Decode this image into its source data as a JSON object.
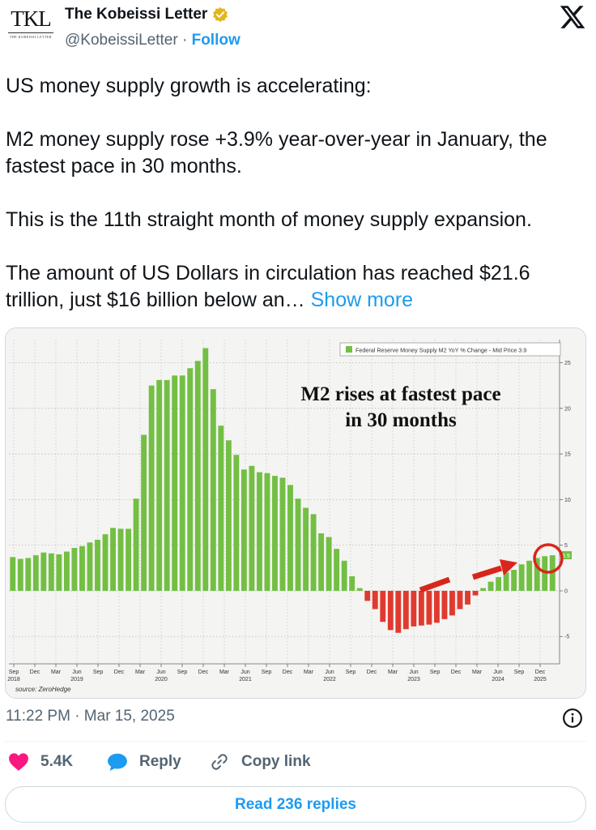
{
  "author": {
    "avatar_monogram": "TKL",
    "avatar_subtitle": "THE KOBEISSI LETTER",
    "name": "The Kobeissi Letter",
    "handle": "@KobeissiLetter",
    "separator": "·",
    "follow_label": "Follow",
    "verified_icon": "verified-badge-gold",
    "platform_icon": "x-logo-icon"
  },
  "tweet": {
    "paragraphs": [
      "US money supply growth is accelerating:",
      "M2 money supply rose +3.9% year-over-year in January, the fastest pace in 30 months.",
      "This is the 11th straight month of money supply expansion.",
      "The amount of US Dollars in circulation has reached $21.6 trillion, just $16 billion below an…"
    ],
    "show_more_label": "Show more"
  },
  "chart_data": {
    "type": "bar",
    "title": "M2 rises at fastest pace in 30 months",
    "legend": "Federal Reserve Money Supply M2 YoY % Change - Mid Price 3.9",
    "legend_position": "top-right",
    "source": "source: ZeroHedge",
    "last_value_label": "3.9",
    "ylim": [
      -8,
      27
    ],
    "y_ticks": [
      25,
      20,
      15,
      10,
      5,
      0,
      -5
    ],
    "grid": true,
    "x_tick_labels": [
      [
        "Sep",
        "2018"
      ],
      [
        "Dec",
        ""
      ],
      [
        "Mar",
        ""
      ],
      [
        "Jun",
        "2019"
      ],
      [
        "Sep",
        ""
      ],
      [
        "Dec",
        ""
      ],
      [
        "Mar",
        ""
      ],
      [
        "Jun",
        "2020"
      ],
      [
        "Sep",
        ""
      ],
      [
        "Dec",
        ""
      ],
      [
        "Mar",
        ""
      ],
      [
        "Jun",
        "2021"
      ],
      [
        "Sep",
        ""
      ],
      [
        "Dec",
        ""
      ],
      [
        "Mar",
        ""
      ],
      [
        "Jun",
        "2022"
      ],
      [
        "Sep",
        ""
      ],
      [
        "Dec",
        ""
      ],
      [
        "Mar",
        ""
      ],
      [
        "Jun",
        "2023"
      ],
      [
        "Sep",
        ""
      ],
      [
        "Dec",
        ""
      ],
      [
        "Mar",
        ""
      ],
      [
        "Jun",
        "2024"
      ],
      [
        "Sep",
        ""
      ],
      [
        "Dec",
        "2025"
      ]
    ],
    "values": [
      3.7,
      3.5,
      3.6,
      3.9,
      4.2,
      4.1,
      4.0,
      4.3,
      4.7,
      4.9,
      5.3,
      5.6,
      6.2,
      6.9,
      6.8,
      6.8,
      10.1,
      17.1,
      22.5,
      23.1,
      23.1,
      23.6,
      23.6,
      24.4,
      25.2,
      26.6,
      22.1,
      18.1,
      16.5,
      14.9,
      13.3,
      13.7,
      13.0,
      12.9,
      12.6,
      12.4,
      11.6,
      10.1,
      9.1,
      8.4,
      6.3,
      5.9,
      4.6,
      3.3,
      1.6,
      0.3,
      -1.1,
      -2.0,
      -3.4,
      -4.3,
      -4.6,
      -4.2,
      -3.9,
      -3.8,
      -3.7,
      -3.5,
      -3.1,
      -2.7,
      -2.0,
      -1.5,
      -0.5,
      0.3,
      1.0,
      1.5,
      2.0,
      2.3,
      2.9,
      3.3,
      3.6,
      3.8,
      3.9
    ],
    "colors": {
      "positive": "#72bf44",
      "negative": "#e03a2f",
      "annotation": "#d9261c",
      "plot_bg": "#f4f4f2"
    }
  },
  "meta": {
    "timestamp": "11:22 PM · Mar 15, 2025"
  },
  "actions": {
    "like_count": "5.4K",
    "reply_label": "Reply",
    "copy_link_label": "Copy link",
    "read_replies_label": "Read 236 replies"
  },
  "colors": {
    "link": "#1d9bf0",
    "like": "#f91880",
    "muted": "#536471",
    "verified": "#e2b719"
  }
}
